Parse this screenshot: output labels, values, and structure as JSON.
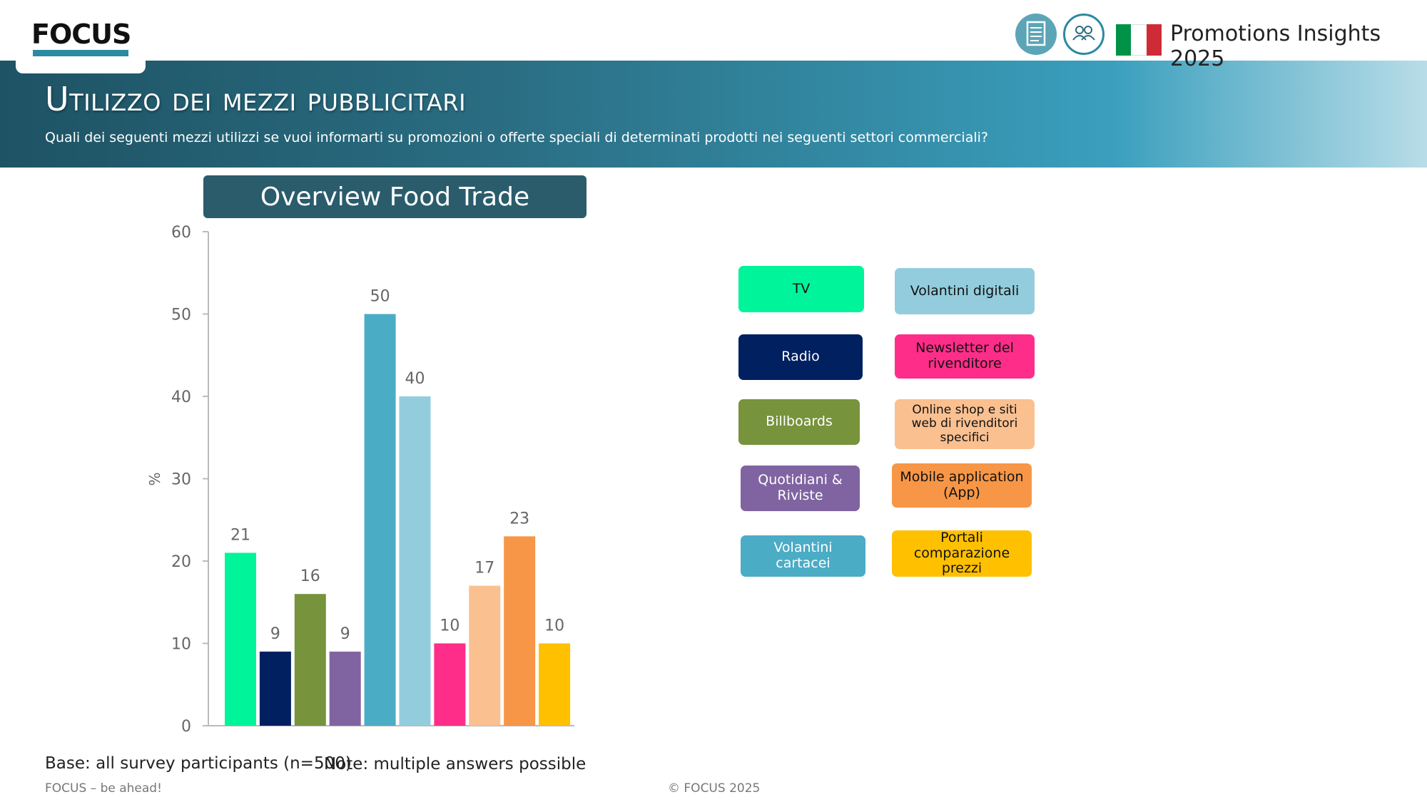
{
  "header": {
    "logo_text": "FOCUS",
    "brand_title": "Promotions Insights 2025",
    "icons": [
      "report-icon",
      "people-icon"
    ],
    "flag_colors": [
      "#009246",
      "#ffffff",
      "#ce2b37"
    ]
  },
  "banner": {
    "title": "Utilizzo dei mezzi pubblicitari",
    "subtitle": "Quali dei seguenti mezzi utilizzi se vuoi informarti su promozioni o offerte speciali di determinati prodotti nei seguenti settori commerciali?"
  },
  "chart_data": {
    "type": "bar",
    "title": "Overview Food Trade",
    "ylabel": "%",
    "xlabel": "",
    "ylim": [
      0,
      60
    ],
    "yticks": [
      0,
      10,
      20,
      30,
      40,
      50,
      60
    ],
    "categories": [
      "TV",
      "Radio",
      "Billboards",
      "Quotidiani & Riviste",
      "Volantini cartacei",
      "Volantini digitali",
      "Newsletter del rivenditore",
      "Online shop e siti web di rivenditori specifici",
      "Mobile application (App)",
      "Portali comparazione prezzi"
    ],
    "values": [
      21,
      9,
      16,
      9,
      50,
      40,
      10,
      17,
      23,
      10
    ],
    "colors": [
      "#00f59b",
      "#002060",
      "#77933c",
      "#8064a2",
      "#4bacc6",
      "#93cddd",
      "#ff2d8a",
      "#fac090",
      "#f79646",
      "#ffc000"
    ],
    "legend": [
      {
        "label": "TV",
        "color": "#00f59b",
        "text_color": "#111111"
      },
      {
        "label": "Volantini digitali",
        "color": "#93cddd",
        "text_color": "#111111"
      },
      {
        "label": "Radio",
        "color": "#002060",
        "text_color": "#ffffff"
      },
      {
        "label": "Newsletter del rivenditore",
        "color": "#ff2d8a",
        "text_color": "#111111"
      },
      {
        "label": "Billboards",
        "color": "#77933c",
        "text_color": "#ffffff"
      },
      {
        "label": "Online shop e siti web di rivenditori specifici",
        "color": "#fac090",
        "text_color": "#111111"
      },
      {
        "label": "Quotidiani & Riviste",
        "color": "#8064a2",
        "text_color": "#ffffff"
      },
      {
        "label": "Mobile application (App)",
        "color": "#f79646",
        "text_color": "#111111"
      },
      {
        "label": "Volantini cartacei",
        "color": "#4bacc6",
        "text_color": "#ffffff"
      },
      {
        "label": "Portali comparazione prezzi",
        "color": "#ffc000",
        "text_color": "#111111"
      }
    ]
  },
  "footer": {
    "base": "Base: all survey participants (n=500)",
    "note": "Note: multiple answers possible",
    "tagline": "FOCUS – be ahead!",
    "copyright": "© FOCUS 2025"
  }
}
